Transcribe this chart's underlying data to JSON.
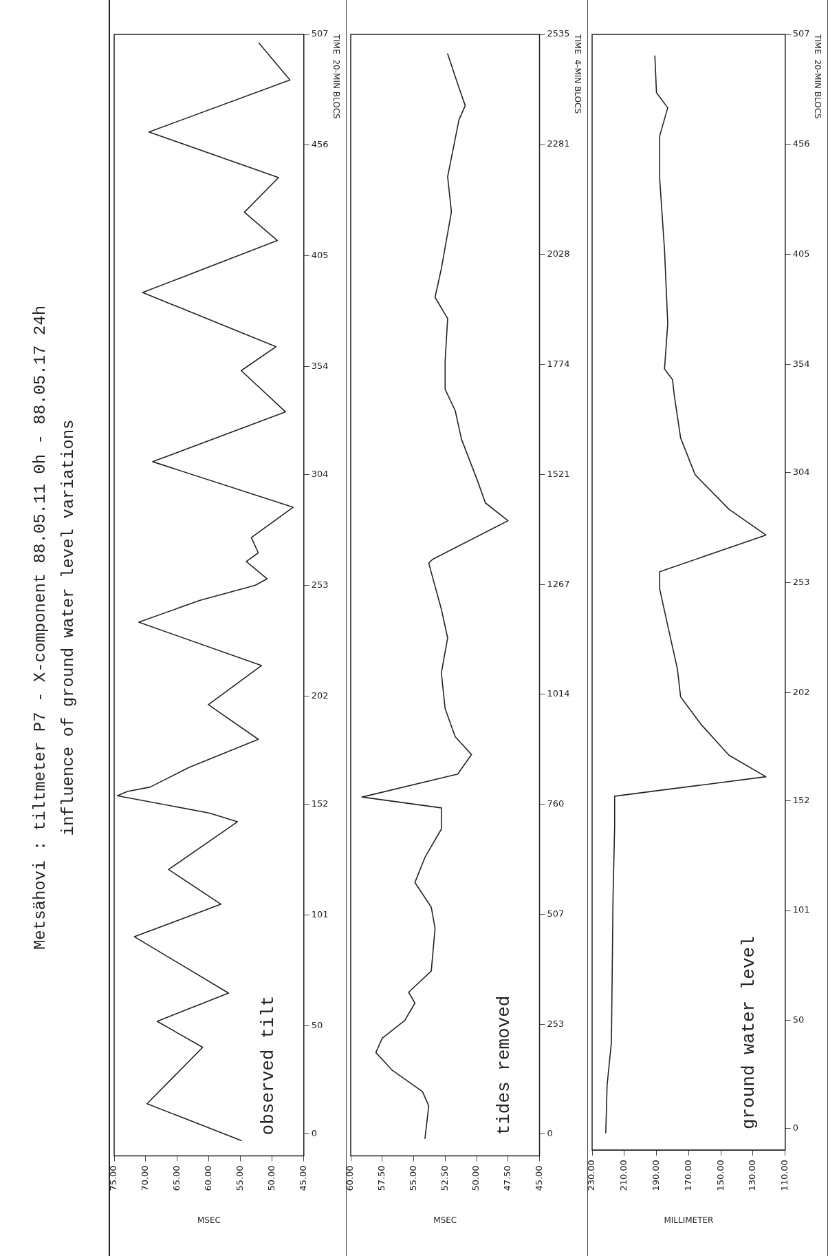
{
  "chart_data": [
    {
      "type": "line",
      "title": "Metsähovi : tiltmeter P7 - X-component  88.05.11 0h - 88.05.17 24h",
      "subtitle": "influence of ground water level variations",
      "xlabel": "MSEC",
      "ylabel": "TIME  20-MIN BLOCS",
      "ylim": [
        -10,
        507
      ],
      "yticks": [
        0,
        50,
        101,
        152,
        202,
        253,
        304,
        354,
        405,
        456,
        507
      ],
      "xlim": [
        75,
        45
      ],
      "xticks": [
        {
          "value": 75,
          "label": "75.00"
        },
        {
          "value": 70,
          "label": "70.00"
        },
        {
          "value": 65,
          "label": "65.00"
        },
        {
          "value": 60,
          "label": "60.00"
        },
        {
          "value": 55,
          "label": "55.00"
        },
        {
          "value": 50,
          "label": "50.00"
        },
        {
          "value": 45,
          "label": "45.00"
        }
      ],
      "series": [
        {
          "name": "observed tilt",
          "color": "#222222",
          "values": [
            -3,
            14,
            40,
            52,
            65,
            91,
            106,
            122,
            144,
            148,
            156,
            158,
            160,
            169,
            182,
            198,
            216,
            236,
            246,
            253,
            256,
            264,
            268,
            275,
            289,
            310,
            333,
            352,
            363,
            388,
            412,
            425,
            441,
            462,
            486,
            503
          ],
          "x": [
            54.9,
            69.8,
            61.0,
            68.2,
            56.9,
            71.8,
            58.1,
            66.4,
            55.5,
            59.9,
            74.5,
            72.9,
            69.3,
            63.2,
            52.2,
            60.1,
            51.7,
            71.1,
            61.5,
            52.7,
            50.8,
            54.1,
            52.2,
            53.3,
            46.7,
            68.9,
            47.9,
            54.9,
            49.4,
            70.5,
            49.2,
            54.4,
            49.0,
            69.5,
            47.2,
            52.1
          ]
        }
      ]
    },
    {
      "type": "line",
      "xlabel": "MSEC",
      "ylabel": "TIME  4-MIN BLOCS",
      "ylim": [
        -50,
        2535
      ],
      "yticks": [
        0,
        253,
        507,
        760,
        1014,
        1267,
        1521,
        1774,
        2028,
        2281,
        2535
      ],
      "xlim": [
        60,
        45
      ],
      "xticks": [
        {
          "value": 60,
          "label": "60.00"
        },
        {
          "value": 57.5,
          "label": "57.50"
        },
        {
          "value": 55,
          "label": "55.00"
        },
        {
          "value": 52.5,
          "label": "52.50"
        },
        {
          "value": 50,
          "label": "50.00"
        },
        {
          "value": 47.5,
          "label": "47.50"
        },
        {
          "value": 45,
          "label": "45.00"
        }
      ],
      "series": [
        {
          "name": "tides removed",
          "color": "#222222",
          "values": [
            -10,
            65,
            98,
            147,
            188,
            221,
            262,
            302,
            327,
            376,
            474,
            523,
            580,
            638,
            703,
            752,
            777,
            830,
            875,
            916,
            981,
            1063,
            1144,
            1210,
            1316,
            1325,
            1414,
            1455,
            1504,
            1602,
            1668,
            1717,
            1782,
            1880,
            1929,
            1995,
            2126,
            2207,
            2338,
            2371,
            2412,
            2490
          ],
          "x": [
            54.1,
            53.8,
            54.3,
            56.7,
            58.0,
            57.5,
            55.7,
            54.9,
            55.4,
            53.6,
            53.3,
            53.6,
            54.9,
            54.1,
            52.8,
            52.8,
            59.1,
            51.5,
            50.4,
            51.7,
            52.5,
            52.8,
            52.3,
            52.8,
            53.8,
            53.5,
            47.5,
            49.3,
            49.9,
            51.2,
            51.7,
            52.5,
            52.5,
            52.3,
            53.3,
            52.8,
            52.0,
            52.3,
            51.4,
            50.9,
            51.4,
            52.3
          ]
        }
      ]
    },
    {
      "type": "line",
      "xlabel": "MILLIMETER",
      "ylabel": "TIME  20-MIN BLOCS",
      "ylim": [
        -10,
        507
      ],
      "yticks": [
        0,
        50,
        101,
        152,
        202,
        253,
        304,
        354,
        405,
        456,
        507
      ],
      "xlim": [
        230,
        110
      ],
      "xticks": [
        {
          "value": 230,
          "label": "230.00"
        },
        {
          "value": 210,
          "label": "210.00"
        },
        {
          "value": 190,
          "label": "190.00"
        },
        {
          "value": 170,
          "label": "170.00"
        },
        {
          "value": 150,
          "label": "150.00"
        },
        {
          "value": 130,
          "label": "130.00"
        },
        {
          "value": 110,
          "label": "110.00"
        }
      ],
      "series": [
        {
          "name": "ground water level",
          "color": "#222222",
          "values": [
            -2,
            20,
            40,
            107,
            140,
            154,
            163,
            173,
            187,
            200,
            213,
            233,
            250,
            258,
            275,
            287,
            303,
            320,
            340,
            347,
            352,
            373,
            407,
            440,
            460,
            473,
            480,
            497
          ],
          "x": [
            221.5,
            220.7,
            218,
            217,
            216,
            216,
            122,
            145,
            162,
            175,
            177,
            183,
            188,
            188,
            122,
            145,
            166,
            175,
            179,
            180,
            185,
            183,
            185,
            188,
            188,
            183,
            190,
            191
          ]
        }
      ]
    }
  ]
}
